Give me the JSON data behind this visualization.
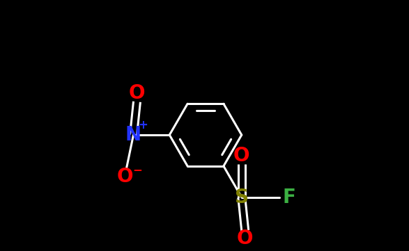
{
  "background_color": "#000000",
  "bond_color": "#ffffff",
  "bond_width": 2.2,
  "atom_colors": {
    "O": "#ff0000",
    "N": "#2233ff",
    "S": "#808000",
    "F": "#3cb043"
  },
  "atom_fontsizes": {
    "main": 20,
    "super": 12
  },
  "figsize": [
    5.87,
    3.61
  ],
  "dpi": 100
}
